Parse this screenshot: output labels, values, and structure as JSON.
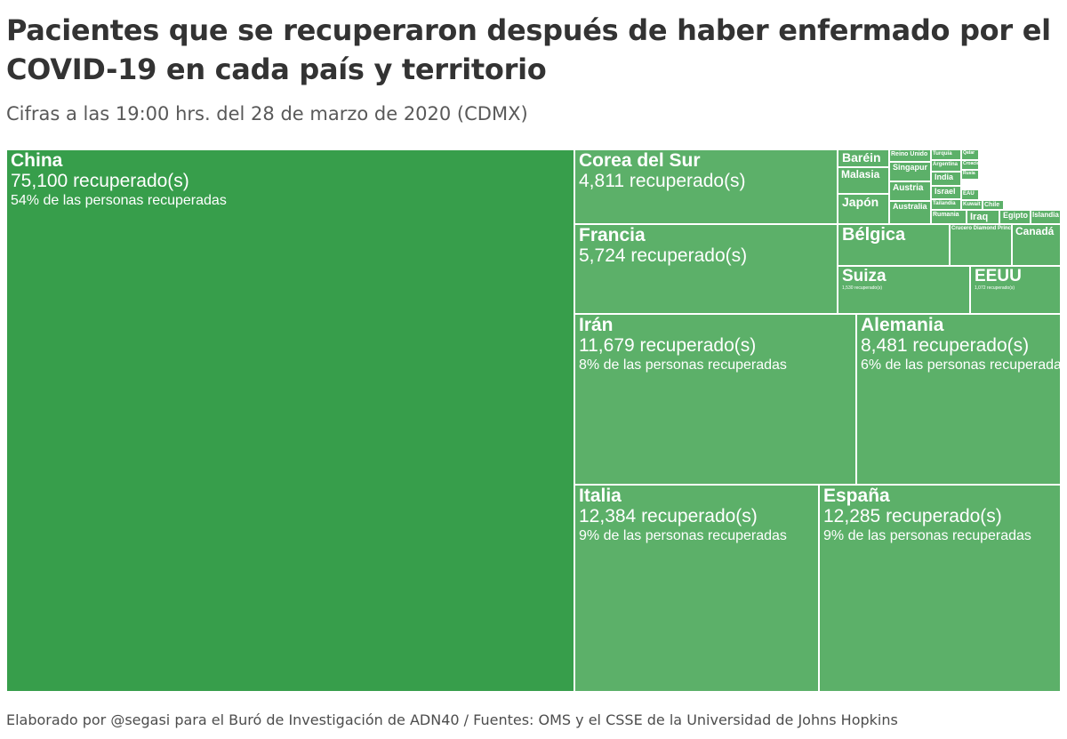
{
  "title": "Pacientes que se recuperaron después de haber enfermado por el COVID-19 en cada país y territorio",
  "subtitle": "Cifras a las 19:00 hrs. del 28 de marzo de 2020 (CDMX)",
  "footer": "Elaborado por @segasi para el Buró de Investigación de ADN40 / Fuentes: OMS y el CSSE de la Universidad de Johns Hopkins",
  "colors": {
    "primary": "#379e4b",
    "tile": "#5cb069",
    "border": "#ffffff",
    "text": "#ffffff"
  },
  "chart_data": {
    "type": "treemap",
    "value_suffix": " recuperado(s)",
    "items": [
      {
        "name": "China",
        "value": 75100,
        "value_label": "75,100 recuperado(s)",
        "pct_label": "54% de las personas recuperadas"
      },
      {
        "name": "Italia",
        "value": 12384,
        "value_label": "12,384 recuperado(s)",
        "pct_label": "9% de las personas recuperadas"
      },
      {
        "name": "España",
        "value": 12285,
        "value_label": "12,285 recuperado(s)",
        "pct_label": "9% de las personas recuperadas"
      },
      {
        "name": "Irán",
        "value": 11679,
        "value_label": "11,679 recuperado(s)",
        "pct_label": "8% de las personas recuperadas"
      },
      {
        "name": "Alemania",
        "value": 8481,
        "value_label": "8,481 recuperado(s)",
        "pct_label": "6% de las personas recuperadas"
      },
      {
        "name": "Francia",
        "value": 5724,
        "value_label": "5,724 recuperado(s)"
      },
      {
        "name": "Corea del Sur",
        "value": 4811,
        "value_label": "4,811 recuperado(s)"
      },
      {
        "name": "Suiza",
        "value": 1530,
        "value_label": "1,530 recuperado(s)"
      },
      {
        "name": "EEUU",
        "value": 1072,
        "value_label": "1,072 recuperado(s)"
      },
      {
        "name": "Bélgica",
        "value": 731
      },
      {
        "name": "Canadá",
        "value": 108
      },
      {
        "name": "Crucero Diamond Princess",
        "value": 80
      },
      {
        "name": "Baréin",
        "value": 185
      },
      {
        "name": "Malasia",
        "value": 183
      },
      {
        "name": "Japón",
        "value": 310
      },
      {
        "name": "Reino Unido",
        "value": 135
      },
      {
        "name": "Singapur",
        "value": 183
      },
      {
        "name": "Austria",
        "value": 225
      },
      {
        "name": "Australia",
        "value": 188
      },
      {
        "name": "Turquía",
        "value": 70
      },
      {
        "name": "Argentina",
        "value": 72
      },
      {
        "name": "India",
        "value": 84
      },
      {
        "name": "Israel",
        "value": 89
      },
      {
        "name": "Tailandia",
        "value": 97
      },
      {
        "name": "Rumania",
        "value": 94
      },
      {
        "name": "Qatar",
        "value": 51
      },
      {
        "name": "Croacia",
        "value": 45
      },
      {
        "name": "Rusia",
        "value": 45
      },
      {
        "name": "EAU",
        "value": 58
      },
      {
        "name": "Kuwait",
        "value": 72
      },
      {
        "name": "Chile",
        "value": 75
      },
      {
        "name": "Iraq",
        "value": 134
      },
      {
        "name": "Egipto",
        "value": 89
      },
      {
        "name": "Islandia",
        "value": 97
      }
    ]
  }
}
